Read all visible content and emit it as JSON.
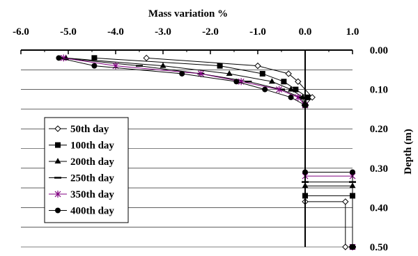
{
  "chart_data": {
    "type": "line",
    "title": "",
    "xlabel": "Mass variation %",
    "ylabel": "Depth (m)",
    "xlim": [
      -6.0,
      1.0
    ],
    "ylim": [
      0.0,
      0.5
    ],
    "x_ticks": [
      "-6.0",
      "-5.0",
      "-4.0",
      "-3.0",
      "-2.0",
      "-1.0",
      "0.0",
      "1.0"
    ],
    "y_ticks": [
      "0.00",
      "0.10",
      "0.20",
      "0.30",
      "0.40",
      "0.50"
    ],
    "grid": "horizontal",
    "x_axis_position": "top",
    "y_axis_position": "right",
    "legend_position": "left",
    "series": [
      {
        "name": "50th day",
        "marker": "diamond-open",
        "color": "#000000",
        "points": [
          [
            -3.35,
            0.02
          ],
          [
            -1.0,
            0.04
          ],
          [
            -0.35,
            0.06
          ],
          [
            -0.15,
            0.08
          ],
          [
            0.15,
            0.12
          ],
          [
            0.0,
            0.14
          ],
          [
            0.0,
            0.385
          ],
          [
            0.85,
            0.385
          ],
          [
            0.85,
            0.5
          ]
        ]
      },
      {
        "name": "100th day",
        "marker": "square-filled",
        "color": "#000000",
        "points": [
          [
            -4.45,
            0.02
          ],
          [
            -1.8,
            0.04
          ],
          [
            -0.9,
            0.06
          ],
          [
            -0.45,
            0.08
          ],
          [
            -0.2,
            0.1
          ],
          [
            0.05,
            0.12
          ],
          [
            0.0,
            0.14
          ],
          [
            0.0,
            0.37
          ],
          [
            1.0,
            0.37
          ],
          [
            1.0,
            0.5
          ]
        ]
      },
      {
        "name": "200th day",
        "marker": "triangle-filled",
        "color": "#000000",
        "points": [
          [
            -5.05,
            0.02
          ],
          [
            -3.0,
            0.04
          ],
          [
            -1.6,
            0.06
          ],
          [
            -0.7,
            0.08
          ],
          [
            -0.3,
            0.1
          ],
          [
            -0.05,
            0.12
          ],
          [
            0.0,
            0.14
          ],
          [
            0.0,
            0.345
          ],
          [
            1.0,
            0.345
          ],
          [
            1.0,
            0.5
          ]
        ]
      },
      {
        "name": "250th day",
        "marker": "dash",
        "color": "#000000",
        "points": [
          [
            -5.15,
            0.02
          ],
          [
            -3.5,
            0.04
          ],
          [
            -2.2,
            0.06
          ],
          [
            -1.2,
            0.08
          ],
          [
            -0.5,
            0.1
          ],
          [
            -0.1,
            0.12
          ],
          [
            0.0,
            0.14
          ],
          [
            0.0,
            0.335
          ],
          [
            1.0,
            0.335
          ],
          [
            1.0,
            0.5
          ]
        ]
      },
      {
        "name": "350th day",
        "marker": "asterisk",
        "color": "#800080",
        "points": [
          [
            -5.1,
            0.02
          ],
          [
            -4.0,
            0.04
          ],
          [
            -2.2,
            0.06
          ],
          [
            -1.35,
            0.08
          ],
          [
            -0.55,
            0.1
          ],
          [
            -0.15,
            0.12
          ],
          [
            0.0,
            0.14
          ],
          [
            0.0,
            0.32
          ],
          [
            1.0,
            0.32
          ],
          [
            1.0,
            0.5
          ]
        ]
      },
      {
        "name": "400th day",
        "marker": "circle-filled",
        "color": "#000000",
        "points": [
          [
            -5.2,
            0.02
          ],
          [
            -4.45,
            0.04
          ],
          [
            -2.6,
            0.06
          ],
          [
            -1.45,
            0.08
          ],
          [
            -0.85,
            0.1
          ],
          [
            -0.3,
            0.12
          ],
          [
            0.0,
            0.14
          ],
          [
            0.0,
            0.31
          ],
          [
            1.0,
            0.31
          ],
          [
            1.0,
            0.5
          ]
        ]
      }
    ]
  }
}
